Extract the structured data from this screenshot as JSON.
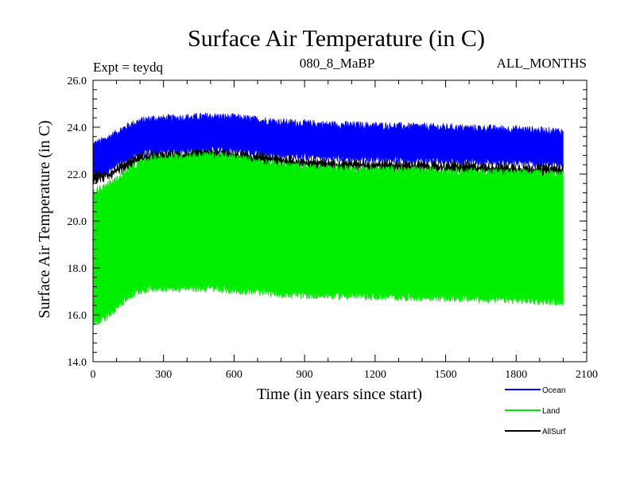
{
  "chart_data": {
    "type": "area",
    "title": "Surface Air Temperature (in C)",
    "subtitle_left": "Expt = teydq",
    "subtitle_center": "080_8_MaBP",
    "subtitle_right": "ALL_MONTHS",
    "xlabel": "Time (in years since start)",
    "ylabel": "Surface Air Temperature (in C)",
    "xlim": [
      0,
      2100
    ],
    "ylim": [
      14.0,
      26.0
    ],
    "x_ticks": [
      0,
      300,
      600,
      900,
      1200,
      1500,
      1800,
      2100
    ],
    "x_tick_labels": [
      "0",
      "300",
      "600",
      "900",
      "1200",
      "1500",
      "1800",
      "2100"
    ],
    "x_minor_step": 100,
    "y_ticks": [
      14.0,
      16.0,
      18.0,
      20.0,
      22.0,
      24.0,
      26.0
    ],
    "y_tick_labels": [
      "14.0",
      "16.0",
      "18.0",
      "20.0",
      "22.0",
      "24.0",
      "26.0"
    ],
    "y_minor_step": 0.4,
    "description_note": "Each series plotted as a noisy seasonal envelope between min and max values over time",
    "series": [
      {
        "name": "Ocean",
        "color": "#0000ff",
        "x": [
          0,
          50,
          100,
          150,
          200,
          250,
          300,
          400,
          500,
          600,
          700,
          800,
          900,
          1000,
          1200,
          1400,
          1600,
          1800,
          2000
        ],
        "upper": [
          23.3,
          23.5,
          23.8,
          24.1,
          24.3,
          24.4,
          24.4,
          24.45,
          24.5,
          24.45,
          24.35,
          24.25,
          24.2,
          24.15,
          24.1,
          24.05,
          24.0,
          23.95,
          23.85
        ],
        "lower": [
          21.9,
          22.0,
          22.3,
          22.6,
          22.8,
          22.9,
          22.9,
          22.95,
          23.0,
          22.95,
          22.85,
          22.75,
          22.7,
          22.65,
          22.6,
          22.55,
          22.5,
          22.45,
          22.35
        ]
      },
      {
        "name": "AllSurf",
        "color": "#000000",
        "x": [
          0,
          50,
          100,
          150,
          200,
          250,
          300,
          400,
          500,
          600,
          700,
          800,
          900,
          1000,
          1200,
          1400,
          1600,
          1800,
          2000
        ],
        "upper": [
          22.1,
          22.0,
          22.3,
          22.6,
          22.8,
          22.85,
          22.85,
          22.9,
          22.95,
          22.9,
          22.8,
          22.7,
          22.6,
          22.55,
          22.5,
          22.45,
          22.4,
          22.35,
          22.3
        ],
        "lower": [
          21.7,
          21.8,
          22.0,
          22.3,
          22.5,
          22.55,
          22.55,
          22.6,
          22.65,
          22.6,
          22.5,
          22.4,
          22.3,
          22.25,
          22.2,
          22.15,
          22.1,
          22.05,
          22.0
        ]
      },
      {
        "name": "Land",
        "color": "#00ee00",
        "x": [
          0,
          50,
          100,
          150,
          200,
          250,
          300,
          400,
          500,
          600,
          700,
          800,
          900,
          1000,
          1200,
          1400,
          1600,
          1800,
          2000
        ],
        "upper": [
          21.3,
          21.5,
          21.8,
          22.2,
          22.5,
          22.7,
          22.75,
          22.8,
          22.85,
          22.75,
          22.6,
          22.45,
          22.35,
          22.3,
          22.25,
          22.2,
          22.15,
          22.1,
          22.05
        ],
        "lower": [
          15.6,
          15.8,
          16.3,
          16.7,
          17.0,
          17.1,
          17.1,
          17.1,
          17.1,
          17.0,
          16.95,
          16.85,
          16.8,
          16.8,
          16.75,
          16.7,
          16.65,
          16.6,
          16.5
        ]
      }
    ],
    "legend": [
      {
        "label": "Ocean",
        "color": "#0000ff"
      },
      {
        "label": "Land",
        "color": "#00ee00"
      },
      {
        "label": "AllSurf",
        "color": "#000000"
      }
    ],
    "legend_position": "bottom-right"
  }
}
